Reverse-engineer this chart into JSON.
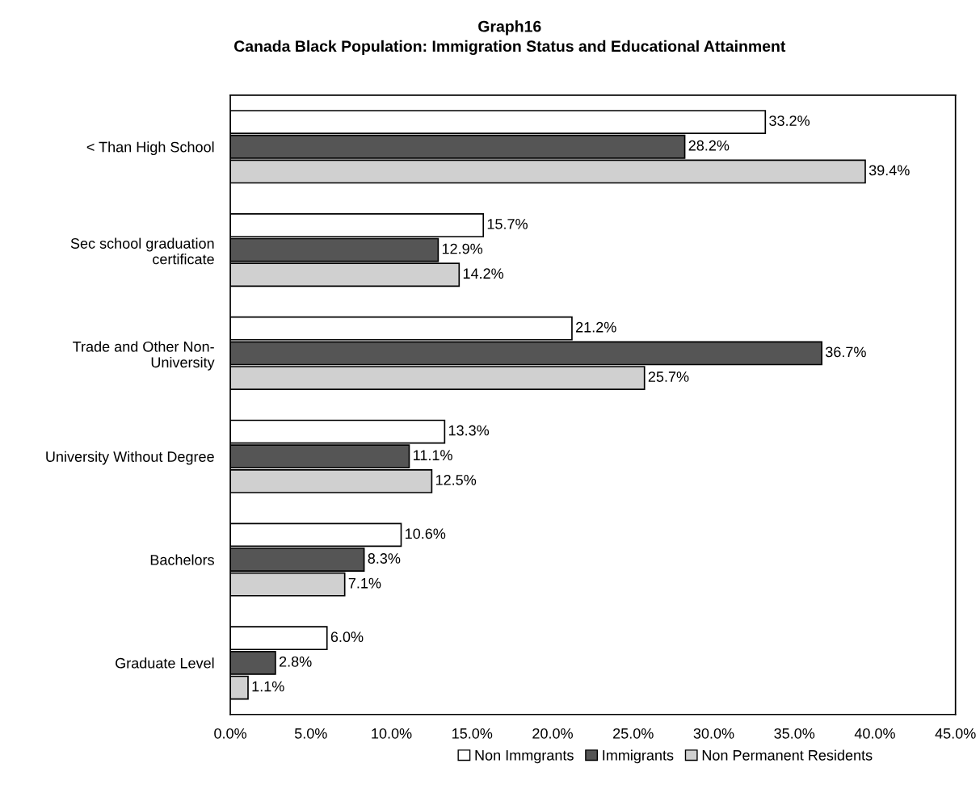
{
  "chart_data": {
    "type": "bar",
    "orientation": "horizontal",
    "title": "Graph16",
    "subtitle": "Canada Black Population: Immigration Status and Educational Attainment",
    "categories": [
      "< Than High School",
      "Sec school graduation\ncertificate",
      "Trade and Other Non-\nUniversity",
      "University Without Degree",
      "Bachelors",
      "Graduate Level"
    ],
    "series": [
      {
        "name": "Non Immgrants",
        "color": "#ffffff",
        "values": [
          33.2,
          15.7,
          21.2,
          13.3,
          10.6,
          6.0
        ],
        "value_labels": [
          "33.2%",
          "15.7%",
          "21.2%",
          "13.3%",
          "10.6%",
          "6.0%"
        ]
      },
      {
        "name": "Immigrants",
        "color": "#555555",
        "values": [
          28.2,
          12.9,
          36.7,
          11.1,
          8.3,
          2.8
        ],
        "value_labels": [
          "28.2%",
          "12.9%",
          "36.7%",
          "11.1%",
          "8.3%",
          "2.8%"
        ]
      },
      {
        "name": "Non Permanent Residents",
        "color": "#d0d0d0",
        "values": [
          39.4,
          14.2,
          25.7,
          12.5,
          7.1,
          1.1
        ],
        "value_labels": [
          "39.4%",
          "14.2%",
          "25.7%",
          "12.5%",
          "7.1%",
          "1.1%"
        ]
      }
    ],
    "xlim": [
      0,
      45
    ],
    "xticks": [
      {
        "value": 0,
        "label": "0.0%"
      },
      {
        "value": 5,
        "label": "5.0%"
      },
      {
        "value": 10,
        "label": "10.0%"
      },
      {
        "value": 15,
        "label": "15.0%"
      },
      {
        "value": 20,
        "label": "20.0%"
      },
      {
        "value": 25,
        "label": "25.0%"
      },
      {
        "value": 30,
        "label": "30.0%"
      },
      {
        "value": 35,
        "label": "35.0%"
      },
      {
        "value": 40,
        "label": "40.0%"
      },
      {
        "value": 45,
        "label": "45.0%"
      }
    ],
    "grid": false,
    "legend": "bottom"
  }
}
